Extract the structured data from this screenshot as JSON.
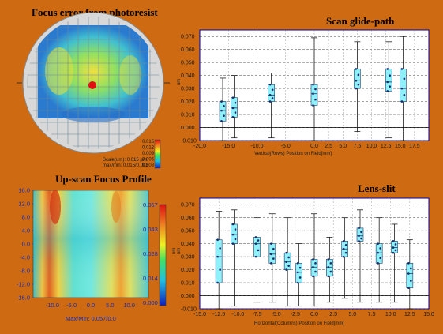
{
  "colors": {
    "background": "#cd6a12",
    "box": "#8ef0f8",
    "point": "#1a2a6a",
    "whisker": "#000000",
    "grid": "#555555",
    "plot_bg": "#ffffff",
    "frame": "#0000aa"
  },
  "chart_data": [
    {
      "type": "heatmap",
      "title": "Focus error from photoresist",
      "colorbar_ticks": [
        "0.015",
        "0.012",
        "0.009",
        "0.006",
        "0.003"
      ],
      "scale_text": "Scale(um): 0.015 µm",
      "maxmin_text": "max/min: 0.015/0.003"
    },
    {
      "type": "box",
      "title": "Scan glide-path",
      "xlabel": "Vertical(Rows) Position on Field[mm]",
      "ylabel": "um",
      "xlim": [
        -20,
        20
      ],
      "ylim": [
        -0.01,
        0.075
      ],
      "x_ticks": [
        "-20.0",
        "-15.0",
        "-10.0",
        "-5.0",
        "0.0",
        "2.5",
        "5.0",
        "7.5",
        "10.0",
        "12.5",
        "15.0",
        "17.5"
      ],
      "y_ticks": [
        "0.070",
        "0.060",
        "0.050",
        "0.040",
        "0.030",
        "0.020",
        "0.010",
        "0.000",
        "-0.010"
      ],
      "boxes": [
        {
          "x": -16,
          "min": -0.01,
          "q1": 0.005,
          "median": 0.013,
          "q3": 0.02,
          "max": 0.038
        },
        {
          "x": -14,
          "min": -0.008,
          "q1": 0.008,
          "median": 0.015,
          "q3": 0.023,
          "max": 0.04
        },
        {
          "x": -7.5,
          "min": -0.008,
          "q1": 0.02,
          "median": 0.025,
          "q3": 0.033,
          "max": 0.042
        },
        {
          "x": 0,
          "min": -0.01,
          "q1": 0.017,
          "median": 0.026,
          "q3": 0.033,
          "max": 0.069
        },
        {
          "x": 7.5,
          "min": -0.003,
          "q1": 0.03,
          "median": 0.036,
          "q3": 0.045,
          "max": 0.066
        },
        {
          "x": 13,
          "min": -0.008,
          "q1": 0.028,
          "median": 0.035,
          "q3": 0.045,
          "max": 0.066
        },
        {
          "x": 15.5,
          "min": -0.01,
          "q1": 0.02,
          "median": 0.03,
          "q3": 0.045,
          "max": 0.07
        }
      ]
    },
    {
      "type": "heatmap",
      "title": "Up-scan Focus Profile",
      "y_ticks": [
        "16.0",
        "12.0",
        "8.0",
        "4.0",
        "0.0",
        "-4.0",
        "-8.0",
        "-12.0",
        "-16.0"
      ],
      "x_ticks": [
        "-10.0",
        "-5.0",
        "0.0",
        "5.0",
        "10.0"
      ],
      "colorbar_ticks": [
        "0.057",
        "0.043",
        "0.028",
        "0.014",
        "0.000"
      ],
      "colorbar_label": "um",
      "maxmin_text": "Max/Min: 0.057/0.0",
      "max": 0.057,
      "min": 0.0
    },
    {
      "type": "box",
      "title": "Lens-slit",
      "xlabel": "Horizontal(Columns) Position on Field[mm]",
      "ylabel": "um",
      "xlim": [
        -15,
        15
      ],
      "ylim": [
        -0.01,
        0.075
      ],
      "x_ticks": [
        "-15.0",
        "-12.5",
        "-10.0",
        "-7.5",
        "-5.0",
        "-2.5",
        "0.0",
        "2.5",
        "5.0",
        "7.5",
        "10.0",
        "12.5",
        "15.0"
      ],
      "y_ticks": [
        "0.070",
        "0.060",
        "0.050",
        "0.040",
        "0.030",
        "0.020",
        "0.010",
        "0.000",
        "-0.010"
      ],
      "boxes": [
        {
          "x": -12.5,
          "min": -0.01,
          "q1": 0.01,
          "median": 0.03,
          "q3": 0.043,
          "max": 0.065
        },
        {
          "x": -10.5,
          "min": -0.008,
          "q1": 0.04,
          "median": 0.047,
          "q3": 0.055,
          "max": 0.066
        },
        {
          "x": -7.5,
          "min": -0.005,
          "q1": 0.03,
          "median": 0.04,
          "q3": 0.045,
          "max": 0.06
        },
        {
          "x": -5.5,
          "min": -0.005,
          "q1": 0.025,
          "median": 0.032,
          "q3": 0.04,
          "max": 0.063
        },
        {
          "x": -3.5,
          "min": -0.008,
          "q1": 0.02,
          "median": 0.026,
          "q3": 0.033,
          "max": 0.06
        },
        {
          "x": -2,
          "min": -0.008,
          "q1": 0.01,
          "median": 0.018,
          "q3": 0.025,
          "max": 0.04
        },
        {
          "x": 0,
          "min": -0.008,
          "q1": 0.015,
          "median": 0.022,
          "q3": 0.028,
          "max": 0.063
        },
        {
          "x": 2,
          "min": -0.005,
          "q1": 0.015,
          "median": 0.022,
          "q3": 0.028,
          "max": 0.045
        },
        {
          "x": 4,
          "min": -0.002,
          "q1": 0.03,
          "median": 0.036,
          "q3": 0.042,
          "max": 0.06
        },
        {
          "x": 6,
          "min": -0.005,
          "q1": 0.042,
          "median": 0.046,
          "q3": 0.052,
          "max": 0.066
        },
        {
          "x": 8.5,
          "min": -0.005,
          "q1": 0.025,
          "median": 0.033,
          "q3": 0.04,
          "max": 0.06
        },
        {
          "x": 10.5,
          "min": -0.005,
          "q1": 0.033,
          "median": 0.037,
          "q3": 0.042,
          "max": 0.055
        },
        {
          "x": 12.5,
          "min": -0.01,
          "q1": 0.006,
          "median": 0.017,
          "q3": 0.025,
          "max": 0.043
        }
      ]
    }
  ]
}
